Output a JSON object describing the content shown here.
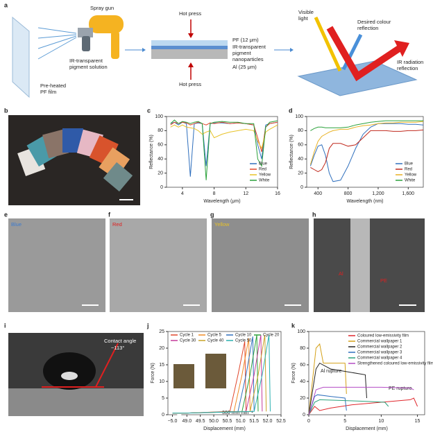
{
  "panel_labels": [
    "a",
    "b",
    "c",
    "d",
    "e",
    "f",
    "g",
    "h",
    "i",
    "j",
    "k"
  ],
  "diagram_a": {
    "spray_gun": "Spray gun",
    "pigment_solution": [
      "IR-transparent",
      "pigment solution"
    ],
    "film": [
      "Pre-heated",
      "PF film"
    ],
    "hot_press_top": "Hot press",
    "hot_press_bottom": "Hot press",
    "pf_layer": "PF (12 μm)",
    "pigment_layer": [
      "IR-transparent",
      "pigment",
      "nanoparticles"
    ],
    "al_layer": "Al (25 μm)",
    "visible_light": [
      "Visible",
      "light"
    ],
    "colour_reflection": [
      "Desired colour",
      "reflection"
    ],
    "ir_reflection": [
      "IR radiation",
      "reflection"
    ]
  },
  "photos": {
    "e": "Blue",
    "f": "Red",
    "g": "Yellow",
    "h_al": "Al",
    "h_pe": "PE",
    "i_contact": [
      "Contact angle",
      "~113°"
    ]
  },
  "chart_data": [
    {
      "type": "line",
      "xlabel": "Wavelength (μm)",
      "ylabel": "Reflectance (%)",
      "xlim": [
        2,
        16
      ],
      "xticks": [
        4,
        8,
        12,
        16
      ],
      "ylim": [
        0,
        100
      ],
      "yticks": [
        0,
        20,
        40,
        60,
        80,
        100
      ],
      "legend": "lower right",
      "x": [
        2.5,
        3,
        3.5,
        4,
        4.5,
        5,
        5.5,
        6,
        6.5,
        7,
        7.5,
        8,
        9,
        10,
        11,
        12,
        13,
        13.5,
        14,
        14.5,
        15,
        16
      ],
      "series": [
        {
          "name": "Blue",
          "color": "#2f6fbd",
          "values": [
            90,
            92,
            88,
            92,
            90,
            15,
            90,
            91,
            90,
            30,
            90,
            91,
            91,
            90,
            91,
            90,
            88,
            60,
            40,
            88,
            90,
            92
          ]
        },
        {
          "name": "Red",
          "color": "#e0462b",
          "values": [
            88,
            92,
            90,
            92,
            91,
            88,
            90,
            92,
            90,
            88,
            91,
            90,
            92,
            90,
            91,
            90,
            88,
            70,
            50,
            85,
            90,
            92
          ]
        },
        {
          "name": "Yellow",
          "color": "#e8c227",
          "values": [
            85,
            88,
            85,
            88,
            85,
            84,
            83,
            80,
            75,
            78,
            80,
            70,
            75,
            78,
            80,
            82,
            80,
            65,
            55,
            78,
            82,
            88
          ]
        },
        {
          "name": "White",
          "color": "#2aa13a",
          "values": [
            90,
            95,
            90,
            93,
            92,
            90,
            92,
            93,
            90,
            10,
            90,
            92,
            93,
            92,
            92,
            90,
            90,
            40,
            30,
            85,
            92,
            94
          ]
        }
      ]
    },
    {
      "type": "line",
      "xlabel": "Wavelength (nm)",
      "ylabel": "Reflectance (%)",
      "xlim": [
        250,
        1800
      ],
      "xticks": [
        400,
        800,
        {
          "value": 1200,
          "label": "1,200"
        },
        {
          "value": 1600,
          "label": "1,600"
        }
      ],
      "ylim": [
        0,
        100
      ],
      "yticks": [
        0,
        20,
        40,
        60,
        80,
        100
      ],
      "legend": "lower right",
      "x": [
        300,
        350,
        400,
        450,
        500,
        550,
        600,
        700,
        800,
        900,
        1000,
        1100,
        1200,
        1300,
        1400,
        1500,
        1600,
        1700,
        1800
      ],
      "series": [
        {
          "name": "Blue",
          "color": "#2f6fbd",
          "values": [
            30,
            45,
            58,
            60,
            45,
            20,
            8,
            10,
            30,
            55,
            75,
            85,
            90,
            90,
            90,
            90,
            89,
            89,
            88
          ]
        },
        {
          "name": "Red",
          "color": "#c0281c",
          "values": [
            28,
            25,
            22,
            25,
            35,
            55,
            62,
            62,
            58,
            60,
            70,
            80,
            80,
            80,
            79,
            79,
            80,
            80,
            81
          ]
        },
        {
          "name": "Yellow",
          "color": "#e8b020",
          "values": [
            32,
            50,
            65,
            72,
            75,
            78,
            80,
            82,
            82,
            85,
            87,
            88,
            90,
            91,
            91,
            92,
            92,
            92,
            93
          ]
        },
        {
          "name": "White",
          "color": "#2aa13a",
          "values": [
            80,
            83,
            85,
            85,
            84,
            84,
            84,
            84,
            85,
            88,
            90,
            92,
            93,
            94,
            94,
            94,
            94,
            94,
            94
          ]
        }
      ]
    },
    {
      "type": "line",
      "xlabel": "Displacement (mm)",
      "ylabel": "Force (N)",
      "xlim": [
        -5.2,
        52.5
      ],
      "xbreak": [
        -4.8,
        48.8
      ],
      "xticks": [
        {
          "value": -5.0,
          "label": "−5.0"
        },
        {
          "value": 49,
          "label": "49.0"
        },
        49.5,
        {
          "value": 50,
          "label": "50.0"
        },
        50.5,
        {
          "value": 51,
          "label": "51.0"
        },
        51.5,
        {
          "value": 52,
          "label": "52.0"
        },
        52.5
      ],
      "ylim": [
        0,
        25
      ],
      "yticks": [
        0,
        5,
        10,
        15,
        20,
        25
      ],
      "legend": "upper center",
      "annotations": [
        "300 mm min⁻¹"
      ],
      "series": [
        {
          "name": "Cycle 1",
          "color": "#e0462b",
          "x": [
            -5.0,
            49.0,
            50.6,
            50.9,
            51.15,
            51.2
          ],
          "values": [
            0.5,
            0.5,
            1,
            12,
            22,
            1
          ]
        },
        {
          "name": "Cycle 5",
          "color": "#f08a24",
          "x": [
            -5.0,
            49.0,
            50.75,
            51.05,
            51.3,
            51.35
          ],
          "values": [
            0.5,
            0.5,
            1,
            12,
            23,
            1
          ]
        },
        {
          "name": "Cycle 10",
          "color": "#2f6fbd",
          "x": [
            -5.0,
            49.0,
            50.9,
            51.2,
            51.45,
            51.5
          ],
          "values": [
            0.5,
            0.5,
            1,
            12,
            23.5,
            1
          ]
        },
        {
          "name": "Cycle 20",
          "color": "#2aa13a",
          "x": [
            -5.0,
            49.0,
            51.05,
            51.35,
            51.6,
            51.65
          ],
          "values": [
            0.5,
            0.5,
            1,
            12,
            24,
            1
          ]
        },
        {
          "name": "Cycle 30",
          "color": "#c43b9a",
          "x": [
            -5.0,
            49.0,
            51.2,
            51.5,
            51.75,
            51.8
          ],
          "values": [
            0.5,
            0.5,
            1,
            12,
            24,
            1
          ]
        },
        {
          "name": "Cycle 40",
          "color": "#c9a227",
          "x": [
            -5.0,
            49.0,
            51.35,
            51.65,
            51.9,
            51.95
          ],
          "values": [
            0.5,
            0.5,
            1,
            12,
            24,
            1
          ]
        },
        {
          "name": "Cycle 50",
          "color": "#2ab0b0",
          "x": [
            -5.0,
            49.0,
            51.5,
            51.8,
            52.05,
            52.1
          ],
          "values": [
            0.5,
            0.5,
            1,
            12,
            24,
            1
          ]
        }
      ]
    },
    {
      "type": "line",
      "xlabel": "Displacement (mm)",
      "ylabel": "Force (N)",
      "xlim": [
        0,
        16
      ],
      "xticks": [
        0,
        5,
        10,
        15
      ],
      "ylim": [
        0,
        100
      ],
      "yticks": [
        0,
        20,
        40,
        60,
        80,
        100
      ],
      "legend": "upper right",
      "annotations": [
        "Al rupture",
        "PE rupture"
      ],
      "series": [
        {
          "name": "Coloured low-emissivity film",
          "color": "#e0262b",
          "x": [
            0,
            0.8,
            1.5,
            3,
            6,
            10,
            14,
            14.5,
            15
          ],
          "values": [
            0,
            10,
            5,
            8,
            12,
            15,
            18,
            20,
            10
          ]
        },
        {
          "name": "Commercial wallpaper 1",
          "color": "#d4a017",
          "x": [
            0,
            1,
            1.5,
            2,
            5,
            5.2
          ],
          "values": [
            0,
            80,
            85,
            62,
            62,
            25
          ]
        },
        {
          "name": "Commercial wallpaper 2",
          "color": "#222222",
          "x": [
            0,
            1,
            1.5,
            3,
            7.8,
            8
          ],
          "values": [
            0,
            55,
            62,
            55,
            48,
            20
          ]
        },
        {
          "name": "Commercial wallpaper 3",
          "color": "#2f6fbd",
          "x": [
            0,
            0.8,
            1.2,
            3,
            5,
            5.2
          ],
          "values": [
            0,
            22,
            24,
            22,
            20,
            5
          ]
        },
        {
          "name": "Commercial wallpaper 4",
          "color": "#2aa17a",
          "x": [
            0,
            0.8,
            1.5,
            5,
            8,
            10.5,
            11
          ],
          "values": [
            0,
            15,
            18,
            17,
            16,
            15,
            10
          ]
        },
        {
          "name": "Strengthened coloured low-emissivity film",
          "color": "#b44cc4",
          "x": [
            0,
            1,
            2,
            10,
            14,
            14.5
          ],
          "values": [
            0,
            30,
            33,
            33,
            32,
            30
          ]
        }
      ]
    }
  ]
}
